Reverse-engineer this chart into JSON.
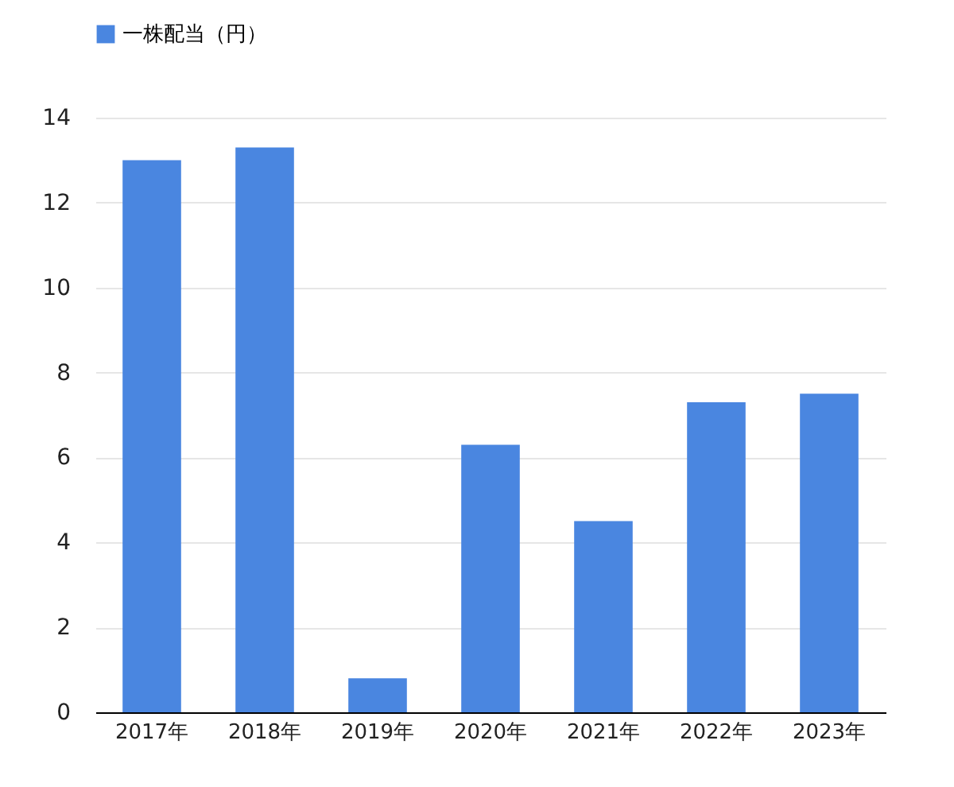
{
  "chart_data": {
    "type": "bar",
    "categories": [
      "2017年",
      "2018年",
      "2019年",
      "2020年",
      "2021年",
      "2022年",
      "2023年"
    ],
    "series": [
      {
        "name": "一株配当（円）",
        "color": "#4a86e0",
        "values": [
          13.0,
          13.3,
          0.8,
          6.3,
          4.5,
          7.3,
          7.5
        ]
      }
    ],
    "ylim": [
      0,
      14
    ],
    "yticks": [
      0,
      2,
      4,
      6,
      8,
      10,
      12,
      14
    ],
    "grid": "y",
    "legend": "top"
  }
}
